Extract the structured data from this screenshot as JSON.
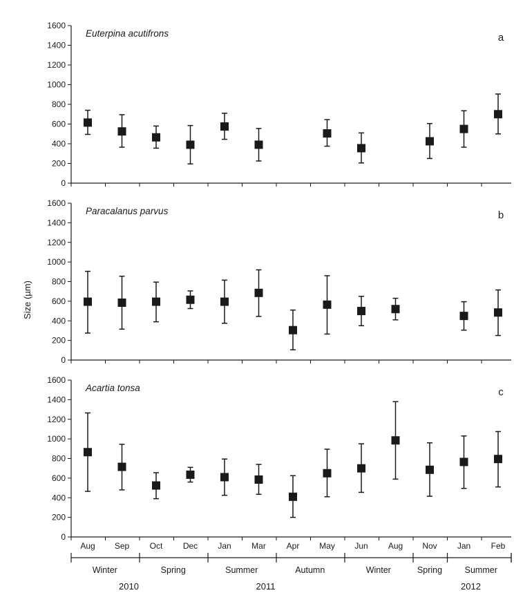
{
  "chart_data": {
    "type": "errorbar-scatter",
    "ylabel": "Size (µm)",
    "ylim": [
      0,
      1600
    ],
    "yticks": [
      0,
      200,
      400,
      600,
      800,
      1000,
      1200,
      1400,
      1600
    ],
    "categories": [
      "Aug",
      "Sep",
      "Oct",
      "Dec",
      "Jan",
      "Mar",
      "Apr",
      "May",
      "Jun",
      "Aug",
      "Nov",
      "Jan",
      "Feb"
    ],
    "seasons": [
      {
        "label": "Winter",
        "start": 0,
        "end": 1
      },
      {
        "label": "Spring",
        "start": 2,
        "end": 3
      },
      {
        "label": "Summer",
        "start": 4,
        "end": 5
      },
      {
        "label": "Autumn",
        "start": 6,
        "end": 7
      },
      {
        "label": "Winter",
        "start": 8,
        "end": 9
      },
      {
        "label": "Spring",
        "start": 10,
        "end": 10
      },
      {
        "label": "Summer",
        "start": 11,
        "end": 12
      }
    ],
    "years": [
      {
        "label": "2010",
        "at": 1
      },
      {
        "label": "2011",
        "at": 5
      },
      {
        "label": "2012",
        "at": 11
      }
    ],
    "panels": [
      {
        "species": "Euterpina acutifrons",
        "letter": "a",
        "means": [
          615,
          525,
          465,
          390,
          575,
          390,
          null,
          505,
          355,
          null,
          425,
          550,
          700
        ],
        "lower": [
          495,
          365,
          355,
          195,
          445,
          225,
          null,
          375,
          205,
          null,
          250,
          365,
          500
        ],
        "upper": [
          740,
          695,
          580,
          585,
          710,
          555,
          null,
          645,
          510,
          null,
          605,
          735,
          905
        ]
      },
      {
        "species": "Paracalanus parvus",
        "letter": "b",
        "means": [
          595,
          585,
          595,
          615,
          595,
          685,
          305,
          565,
          500,
          520,
          null,
          450,
          485
        ],
        "lower": [
          275,
          315,
          390,
          525,
          375,
          445,
          105,
          265,
          350,
          410,
          null,
          305,
          250
        ],
        "upper": [
          905,
          855,
          795,
          705,
          815,
          920,
          510,
          860,
          650,
          630,
          null,
          595,
          715
        ]
      },
      {
        "species": "Acartia tonsa",
        "letter": "c",
        "means": [
          865,
          715,
          525,
          635,
          610,
          585,
          410,
          650,
          700,
          985,
          685,
          765,
          795
        ],
        "lower": [
          465,
          480,
          390,
          560,
          425,
          435,
          200,
          410,
          455,
          590,
          415,
          495,
          510
        ],
        "upper": [
          1265,
          945,
          655,
          710,
          795,
          740,
          625,
          895,
          950,
          1380,
          960,
          1030,
          1075
        ]
      }
    ]
  }
}
